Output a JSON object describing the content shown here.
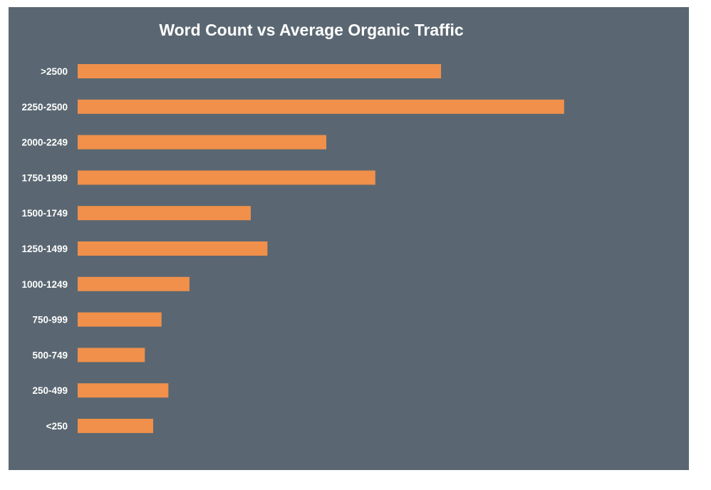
{
  "chart_data": {
    "type": "bar",
    "orientation": "horizontal",
    "title": "Word Count vs Average Organic Traffic",
    "xlabel": "",
    "ylabel": "",
    "categories": [
      ">2500",
      "2250-2500",
      "2000-2249",
      "1750-1999",
      "1500-1749",
      "1250-1499",
      "1000-1249",
      "750-999",
      "500-749",
      "250-499",
      "<250"
    ],
    "values": [
      7.41,
      9.92,
      5.07,
      6.07,
      3.53,
      3.87,
      2.28,
      1.71,
      1.37,
      1.85,
      1.54
    ],
    "xlim": [
      0,
      12
    ],
    "grid": false,
    "legend": "none",
    "colors": {
      "background": "#5a6772",
      "bar": "#f0904a",
      "text": "#ffffff"
    }
  }
}
